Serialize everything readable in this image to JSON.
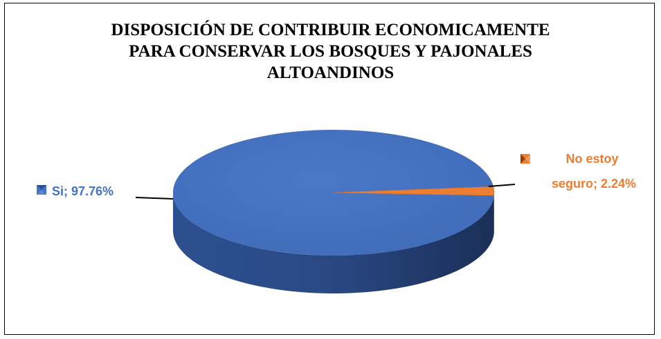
{
  "chart_data": {
    "type": "pie",
    "title_lines": [
      "DISPOSICIÓN DE CONTRIBUIR ECONOMICAMENTE",
      "PARA CONSERVAR LOS BOSQUES Y PAJONALES",
      "ALTOANDINOS"
    ],
    "slices": [
      {
        "name": "Si",
        "value": 97.76,
        "label_lines": [
          "Si; 97.76%"
        ],
        "color": "#4472C4"
      },
      {
        "name": "No estoy seguro",
        "value": 2.24,
        "label_lines": [
          "No estoy",
          "seguro; 2.24%"
        ],
        "color": "#ED7D31"
      }
    ],
    "style": "3d"
  }
}
